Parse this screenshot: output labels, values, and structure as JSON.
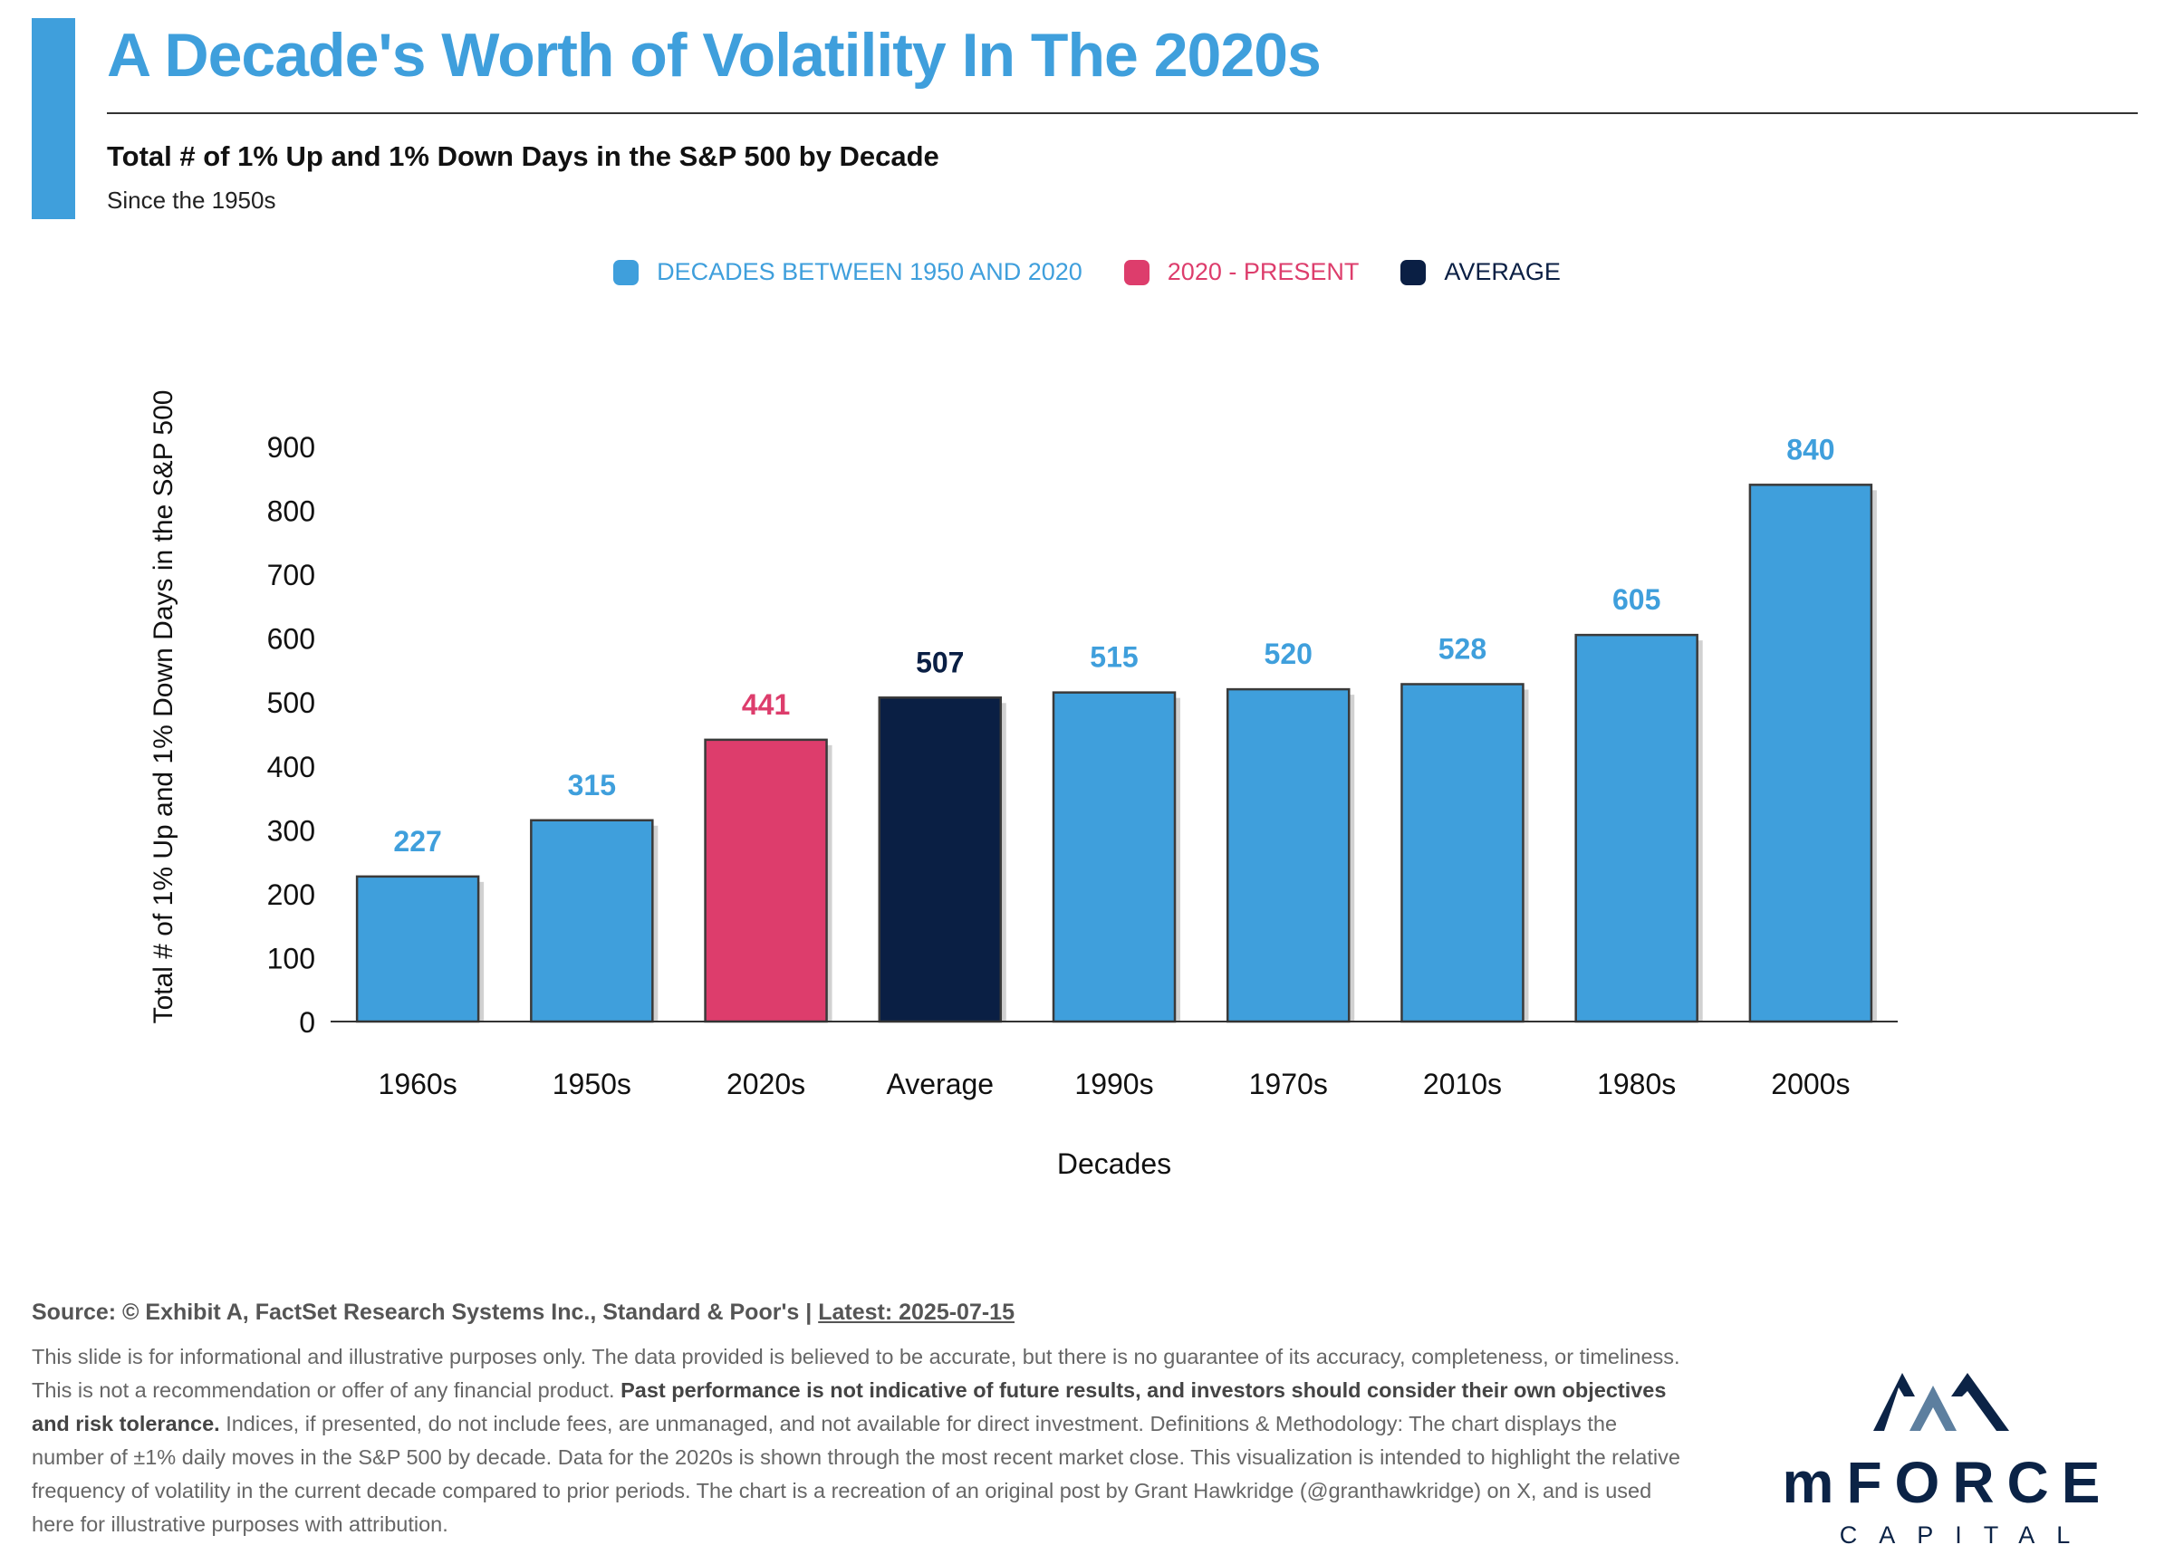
{
  "header": {
    "title": "A Decade's Worth of Volatility In The 2020s",
    "subtitle": "Total # of 1% Up and 1% Down Days in the S&P 500 by Decade",
    "subsubtitle": "Since the 1950s"
  },
  "legend": [
    {
      "label": "DECADES BETWEEN 1950 AND 2020",
      "color": "#3f9fdc"
    },
    {
      "label": "2020 - PRESENT",
      "color": "#dd3d6c"
    },
    {
      "label": "AVERAGE",
      "color": "#0a1f44"
    }
  ],
  "chart_data": {
    "type": "bar",
    "xlabel": "Decades",
    "ylabel": "Total # of 1% Up and 1% Down Days in the S&P 500",
    "ylim": [
      0,
      900
    ],
    "yticks": [
      0,
      100,
      200,
      300,
      400,
      500,
      600,
      700,
      800,
      900
    ],
    "categories": [
      "1960s",
      "1950s",
      "2020s",
      "Average",
      "1990s",
      "1970s",
      "2010s",
      "1980s",
      "2000s"
    ],
    "values": [
      227,
      315,
      441,
      507,
      515,
      520,
      528,
      605,
      840
    ],
    "bar_colors": [
      "#3f9fdc",
      "#3f9fdc",
      "#dd3d6c",
      "#0a1f44",
      "#3f9fdc",
      "#3f9fdc",
      "#3f9fdc",
      "#3f9fdc",
      "#3f9fdc"
    ],
    "data_labels": true,
    "grid": false,
    "legend_position": "top-center"
  },
  "footer": {
    "source_prefix": "Source: © Exhibit A, FactSet Research Systems Inc., Standard & Poor's | ",
    "latest": "Latest: 2025-07-15",
    "disclaimer_1": "This slide is for informational and illustrative purposes only. The data provided is believed to be accurate, but there is no guarantee of its accuracy, completeness, or timeliness. This is not a recommendation or offer of any financial product. ",
    "disclaimer_bold": "Past performance is not indicative of future results, and investors should consider their own objectives and risk tolerance.",
    "disclaimer_2": " Indices, if presented, do not include fees, are unmanaged, and not available for direct investment. Definitions & Methodology: The chart displays the number of ±1% daily moves in the S&P 500 by decade. Data for the 2020s is shown through the most recent market close. This visualization is intended to highlight the relative frequency of volatility in the current decade compared to prior periods. The chart is a recreation of an original post by Grant Hawkridge (@granthawkridge) on X, and is used here for illustrative purposes with attribution."
  },
  "logo": {
    "name": "mFORCE",
    "sub": "CAPITAL",
    "color": "#0b2346",
    "accent": "#5d7f9f"
  }
}
